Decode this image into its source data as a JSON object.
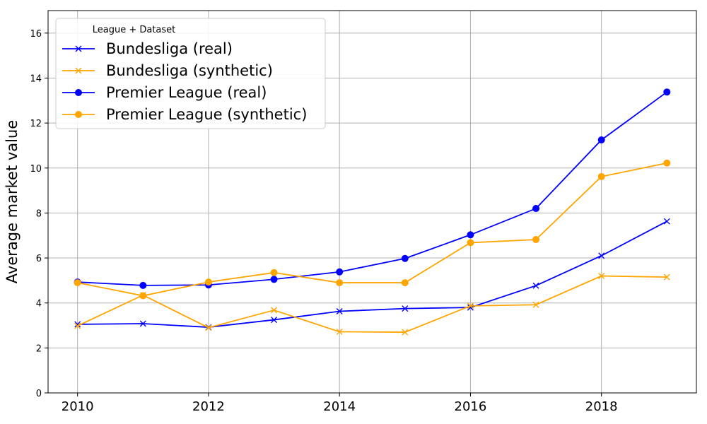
{
  "chart_data": {
    "type": "line",
    "title": "",
    "xlabel": "",
    "ylabel": "Average market value",
    "xlim": [
      2009.55,
      2019.45
    ],
    "ylim": [
      0,
      17
    ],
    "xticks": [
      2010,
      2012,
      2014,
      2016,
      2018
    ],
    "yticks": [
      0,
      2,
      4,
      6,
      8,
      10,
      12,
      14,
      16
    ],
    "grid": true,
    "legend": {
      "title": "League + Dataset",
      "placement": "top-left"
    },
    "x": [
      2010,
      2011,
      2012,
      2013,
      2014,
      2015,
      2016,
      2017,
      2018,
      2019
    ],
    "series": [
      {
        "name": "Bundesliga (real)",
        "color": "#0000ff",
        "marker": "x",
        "values": [
          3.05,
          3.08,
          2.92,
          3.25,
          3.63,
          3.75,
          3.8,
          4.77,
          6.1,
          7.63
        ]
      },
      {
        "name": "Bundesliga (synthetic)",
        "color": "#ffa500",
        "marker": "x",
        "values": [
          2.98,
          4.35,
          2.9,
          3.68,
          2.72,
          2.7,
          3.87,
          3.92,
          5.2,
          5.15
        ]
      },
      {
        "name": "Premier League (real)",
        "color": "#0000ff",
        "marker": "o",
        "values": [
          4.93,
          4.78,
          4.8,
          5.05,
          5.38,
          5.98,
          7.03,
          8.2,
          11.25,
          13.38
        ]
      },
      {
        "name": "Premier League (synthetic)",
        "color": "#ffa500",
        "marker": "o",
        "values": [
          4.9,
          4.32,
          4.93,
          5.35,
          4.9,
          4.9,
          6.68,
          6.82,
          9.62,
          10.22
        ]
      }
    ]
  }
}
